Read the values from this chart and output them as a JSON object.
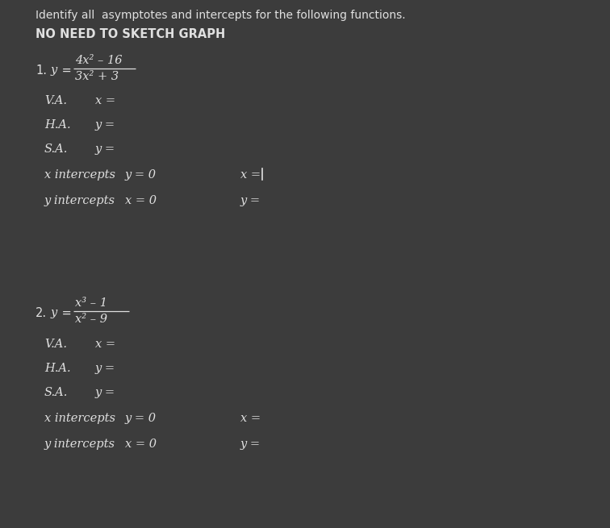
{
  "background_color": "#3c3c3c",
  "text_color": "#e0e0e0",
  "title_line1": "Identify all  asymptotes and intercepts for the following functions.",
  "title_line2": "NO NEED TO SKETCH GRAPH",
  "p1_numerator": "4x² – 16",
  "p1_denominator": "3x² + 3",
  "p2_numerator": "x³ – 1",
  "p2_denominator": "x² – 9",
  "figwidth": 7.56,
  "figheight": 6.55,
  "dpi": 100
}
